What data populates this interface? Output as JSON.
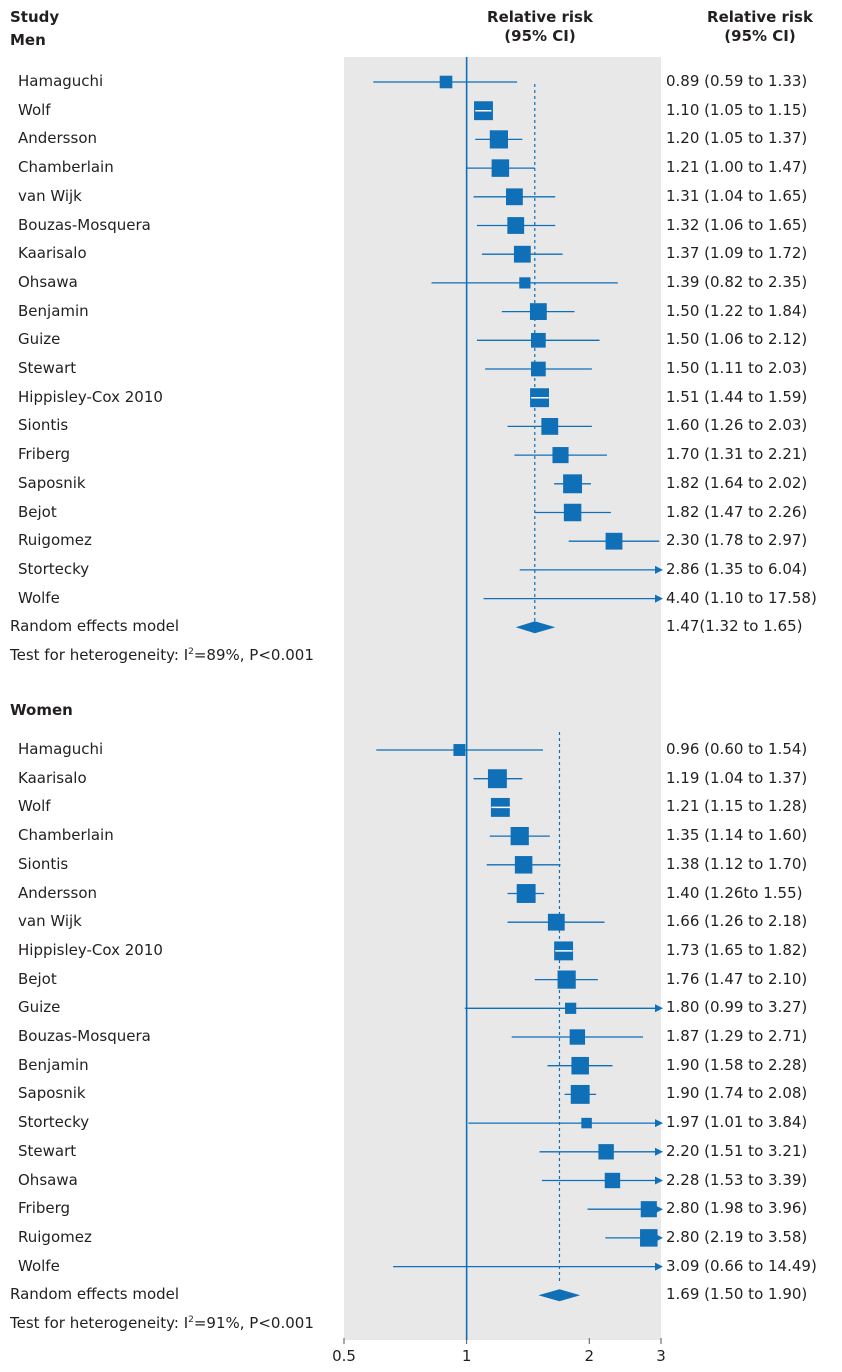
{
  "headers": {
    "study": "Study",
    "rr_mid_1": "Relative risk",
    "rr_mid_2": "(95% CI)",
    "rr_right_1": "Relative risk",
    "rr_right_2": "(95% CI)"
  },
  "colors": {
    "marker": "#0f6fb7",
    "band": "#e8e8e8",
    "text": "#231f20"
  },
  "chart_data": {
    "type": "forest",
    "x_scale": "log",
    "xlim": [
      0.5,
      3
    ],
    "x_ticks": [
      {
        "value": 0.5,
        "label": "0.5"
      },
      {
        "value": 1,
        "label": "1"
      },
      {
        "value": 2,
        "label": "2"
      },
      {
        "value": 3,
        "label": "3"
      }
    ],
    "reference_line": 1,
    "groups": [
      {
        "name": "Men",
        "studies": [
          {
            "name": "Hamaguchi",
            "rr": 0.89,
            "lo": 0.59,
            "hi": 1.33,
            "label": "0.89 (0.59 to 1.33)",
            "weight": 0.9
          },
          {
            "name": "Wolf",
            "rr": 1.1,
            "lo": 1.05,
            "hi": 1.15,
            "label": "1.10 (1.05 to 1.15)",
            "weight": 1.35
          },
          {
            "name": "Andersson",
            "rr": 1.2,
            "lo": 1.05,
            "hi": 1.37,
            "label": "1.20 (1.05 to 1.37)",
            "weight": 1.3
          },
          {
            "name": "Chamberlain",
            "rr": 1.21,
            "lo": 1.0,
            "hi": 1.47,
            "label": "1.21 (1.00 to 1.47)",
            "weight": 1.25
          },
          {
            "name": "van Wijk",
            "rr": 1.31,
            "lo": 1.04,
            "hi": 1.65,
            "label": "1.31 (1.04 to 1.65)",
            "weight": 1.2
          },
          {
            "name": "Bouzas-Mosquera",
            "rr": 1.32,
            "lo": 1.06,
            "hi": 1.65,
            "label": "1.32 (1.06 to 1.65)",
            "weight": 1.2
          },
          {
            "name": "Kaarisalo",
            "rr": 1.37,
            "lo": 1.09,
            "hi": 1.72,
            "label": "1.37 (1.09 to 1.72)",
            "weight": 1.2
          },
          {
            "name": "Ohsawa",
            "rr": 1.39,
            "lo": 0.82,
            "hi": 2.35,
            "label": "1.39 (0.82 to 2.35)",
            "weight": 0.8
          },
          {
            "name": "Benjamin",
            "rr": 1.5,
            "lo": 1.22,
            "hi": 1.84,
            "label": "1.50 (1.22 to 1.84)",
            "weight": 1.2
          },
          {
            "name": "Guize",
            "rr": 1.5,
            "lo": 1.06,
            "hi": 2.12,
            "label": "1.50 (1.06 to 2.12)",
            "weight": 1.05
          },
          {
            "name": "Stewart",
            "rr": 1.5,
            "lo": 1.11,
            "hi": 2.03,
            "label": "1.50 (1.11 to 2.03)",
            "weight": 1.05
          },
          {
            "name": "Hippisley-Cox 2010",
            "rr": 1.51,
            "lo": 1.44,
            "hi": 1.59,
            "label": "1.51 (1.44 to 1.59)",
            "weight": 1.35
          },
          {
            "name": "Siontis",
            "rr": 1.6,
            "lo": 1.26,
            "hi": 2.03,
            "label": "1.60 (1.26 to 2.03)",
            "weight": 1.2
          },
          {
            "name": "Friberg",
            "rr": 1.7,
            "lo": 1.31,
            "hi": 2.21,
            "label": "1.70 (1.31 to 2.21)",
            "weight": 1.15
          },
          {
            "name": "Saposnik",
            "rr": 1.82,
            "lo": 1.64,
            "hi": 2.02,
            "label": "1.82 (1.64 to 2.02)",
            "weight": 1.35
          },
          {
            "name": "Bejot",
            "rr": 1.82,
            "lo": 1.47,
            "hi": 2.26,
            "label": "1.82 (1.47 to 2.26)",
            "weight": 1.25
          },
          {
            "name": "Ruigomez",
            "rr": 2.3,
            "lo": 1.78,
            "hi": 2.97,
            "label": "2.30 (1.78 to 2.97)",
            "weight": 1.2
          },
          {
            "name": "Stortecky",
            "rr": 2.86,
            "lo": 1.35,
            "hi": 6.04,
            "label": "2.86 (1.35 to 6.04)",
            "weight": 0
          },
          {
            "name": "Wolfe",
            "rr": 4.4,
            "lo": 1.1,
            "hi": 17.58,
            "label": "4.40 (1.10 to 17.58)",
            "weight": 0
          }
        ],
        "pooled": {
          "name": "Random effects model",
          "rr": 1.47,
          "lo": 1.32,
          "hi": 1.65,
          "label": "1.47(1.32 to 1.65)"
        },
        "heterogeneity": {
          "prefix": "Test for heterogeneity: I",
          "sup": "2",
          "suffix": "=89%, P<0.001"
        }
      },
      {
        "name": "Women",
        "studies": [
          {
            "name": "Hamaguchi",
            "rr": 0.96,
            "lo": 0.6,
            "hi": 1.54,
            "label": "0.96 (0.60 to 1.54)",
            "weight": 0.85
          },
          {
            "name": "Kaarisalo",
            "rr": 1.19,
            "lo": 1.04,
            "hi": 1.37,
            "label": "1.19 (1.04 to 1.37)",
            "weight": 1.35
          },
          {
            "name": "Wolf",
            "rr": 1.21,
            "lo": 1.15,
            "hi": 1.28,
            "label": "1.21 (1.15 to 1.28)",
            "weight": 1.35
          },
          {
            "name": "Chamberlain",
            "rr": 1.35,
            "lo": 1.14,
            "hi": 1.6,
            "label": "1.35 (1.14 to 1.60)",
            "weight": 1.3
          },
          {
            "name": "Siontis",
            "rr": 1.38,
            "lo": 1.12,
            "hi": 1.7,
            "label": "1.38 (1.12 to 1.70)",
            "weight": 1.25
          },
          {
            "name": "Andersson",
            "rr": 1.4,
            "lo": 1.26,
            "hi": 1.55,
            "label": "1.40 (1.26to 1.55)",
            "weight": 1.35
          },
          {
            "name": "van Wijk",
            "rr": 1.66,
            "lo": 1.26,
            "hi": 2.18,
            "label": "1.66 (1.26 to 2.18)",
            "weight": 1.2
          },
          {
            "name": "Hippisley-Cox 2010",
            "rr": 1.73,
            "lo": 1.65,
            "hi": 1.82,
            "label": "1.73 (1.65 to 1.82)",
            "weight": 1.35
          },
          {
            "name": "Bejot",
            "rr": 1.76,
            "lo": 1.47,
            "hi": 2.1,
            "label": "1.76 (1.47 to 2.10)",
            "weight": 1.3
          },
          {
            "name": "Guize",
            "rr": 1.8,
            "lo": 0.99,
            "hi": 3.27,
            "label": "1.80 (0.99 to 3.27)",
            "weight": 0.8
          },
          {
            "name": "Bouzas-Mosquera",
            "rr": 1.87,
            "lo": 1.29,
            "hi": 2.71,
            "label": "1.87 (1.29 to 2.71)",
            "weight": 1.1
          },
          {
            "name": "Benjamin",
            "rr": 1.9,
            "lo": 1.58,
            "hi": 2.28,
            "label": "1.90 (1.58 to 2.28)",
            "weight": 1.25
          },
          {
            "name": "Saposnik",
            "rr": 1.9,
            "lo": 1.74,
            "hi": 2.08,
            "label": "1.90 (1.74 to 2.08)",
            "weight": 1.35
          },
          {
            "name": "Stortecky",
            "rr": 1.97,
            "lo": 1.01,
            "hi": 3.84,
            "label": "1.97 (1.01 to 3.84)",
            "weight": 0.75
          },
          {
            "name": "Stewart",
            "rr": 2.2,
            "lo": 1.51,
            "hi": 3.21,
            "label": "2.20 (1.51 to 3.21)",
            "weight": 1.1
          },
          {
            "name": "Ohsawa",
            "rr": 2.28,
            "lo": 1.53,
            "hi": 3.39,
            "label": "2.28 (1.53 to 3.39)",
            "weight": 1.1
          },
          {
            "name": "Friberg",
            "rr": 2.8,
            "lo": 1.98,
            "hi": 3.96,
            "label": "2.80 (1.98 to 3.96)",
            "weight": 1.15
          },
          {
            "name": "Ruigomez",
            "rr": 2.8,
            "lo": 2.19,
            "hi": 3.58,
            "label": "2.80 (2.19 to 3.58)",
            "weight": 1.25
          },
          {
            "name": "Wolfe",
            "rr": 3.09,
            "lo": 0.66,
            "hi": 14.49,
            "label": "3.09 (0.66 to 14.49)",
            "weight": 0
          }
        ],
        "pooled": {
          "name": "Random effects model",
          "rr": 1.69,
          "lo": 1.5,
          "hi": 1.9,
          "label": "1.69 (1.50 to 1.90)"
        },
        "heterogeneity": {
          "prefix": "Test for heterogeneity: I",
          "sup": "2",
          "suffix": "=91%, P<0.001"
        }
      }
    ]
  }
}
